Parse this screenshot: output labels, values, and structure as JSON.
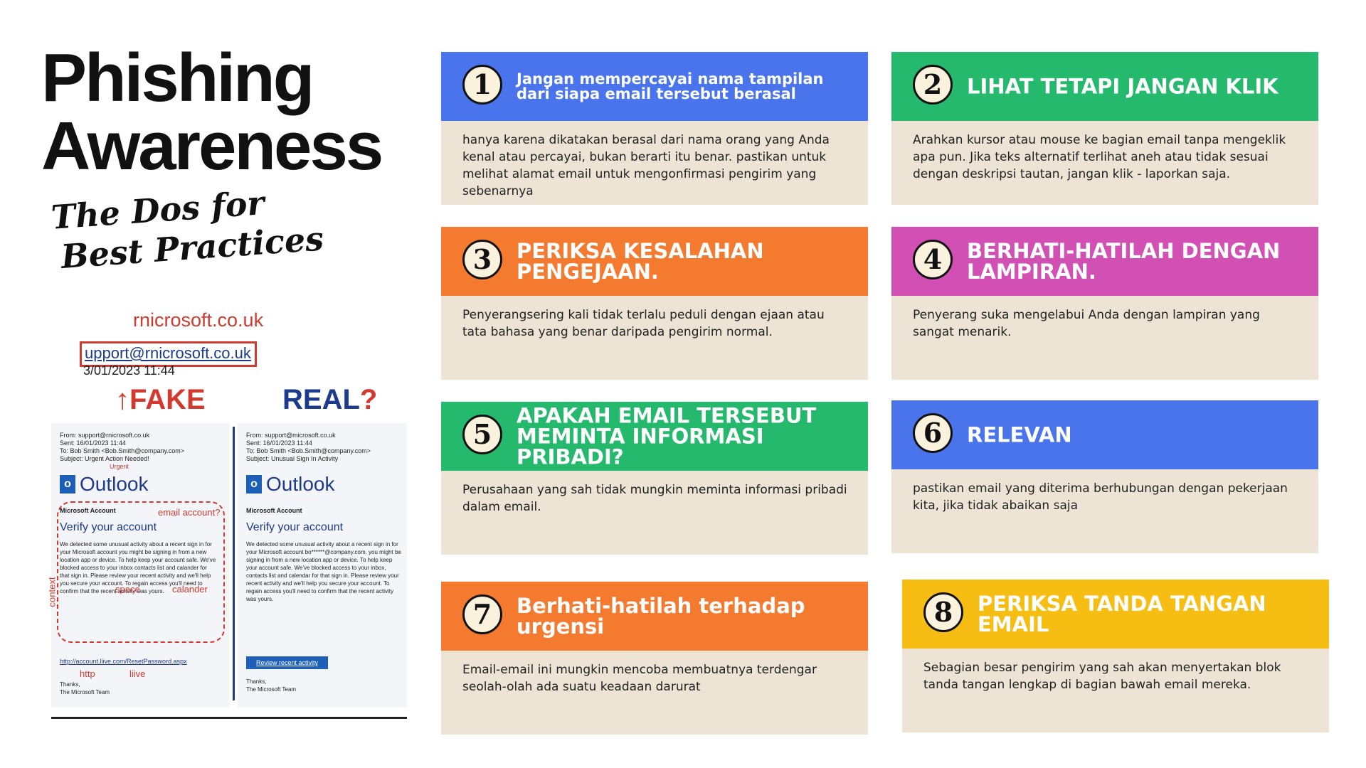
{
  "header": {
    "title_line1": "Phishing",
    "title_line2": "Awareness",
    "subtitle_line1": "The Dos for",
    "subtitle_line2": "Best Practices"
  },
  "illustration": {
    "spoof_domain": "rnicrosoft.co.uk",
    "spoof_address": "upport@rnicrosoft.co.uk",
    "date_fragment": "3/01/2023 11:44",
    "fake_label": "FAKE",
    "real_label": "REAL",
    "real_mark": "?",
    "fake_email": {
      "from": "From: support@rnicrosoft.co.uk",
      "sent": "Sent: 16/01/2023 11:44",
      "to": "To: Bob Smith <Bob.Smith@company.com>",
      "subject": "Subject: Urgent Action Needed!",
      "logo": "Outlook",
      "account": "Microsoft Account",
      "verify": "Verify your account",
      "body": "We detected some unusual activity about a recent sign in for your Microsoft account you might be signing in from a new location app or device. To help keep your account safe. We've blocked access to your inbox contacts list and calander for that sign in. Please review your recent activity and we'll help you secure your account. To regain access you'll need to confirm that the recent activity was yours.",
      "link": "http://account.liive.com/ResetPassword.aspx",
      "signoff": "Thanks,",
      "team": "The Microsoft Team"
    },
    "real_email": {
      "from": "From: support@microsoft.co.uk",
      "sent": "Sent: 16/01/2023 11:44",
      "to": "To: Bob Smith <Bob.Smith@company.com>",
      "subject": "Subject: Unusual Sign In Activity",
      "logo": "Outlook",
      "account": "Microsoft Account",
      "verify": "Verify your account",
      "body": "We detected some unusual activity about a recent sign in for your Microsoft account bo******@company.com. you might be signing in from a new location app or device. To help keep your account safe. We've blocked access to your inbox, contacts list and calendar for that sign in. Please review your recent activity and we'll help you secure your account. To regain access you'll need to confirm that the recent activity was yours.",
      "button": "Review recent activity",
      "signoff": "Thanks,",
      "team": "The Microsoft Team"
    },
    "notes": {
      "urgent": "Urgent",
      "email_account": "email account?",
      "space": "space",
      "calander": "calander",
      "context": "context",
      "http": "http",
      "liive": "liive"
    }
  },
  "cards": [
    {
      "num": "1",
      "title": "Jangan mempercayai nama tampilan dari siapa email tersebut berasal",
      "body": "hanya karena dikatakan berasal dari nama orang yang Anda kenal atau percayai, bukan berarti itu benar. pastikan untuk melihat alamat email untuk mengonfirmasi pengirim yang sebenarnya",
      "color": "#4a74ec"
    },
    {
      "num": "2",
      "title": "LIHAT TETAPI JANGAN KLIK",
      "body": "Arahkan kursor atau mouse ke bagian email tanpa mengeklik apa pun. Jika teks alternatif terlihat aneh atau tidak sesuai dengan deskripsi tautan, jangan klik - laporkan saja.",
      "color": "#24b96c"
    },
    {
      "num": "3",
      "title": "PERIKSA KESALAHAN PENGEJAAN.",
      "body": "Penyerangsering kali tidak terlalu peduli dengan ejaan atau tata bahasa yang benar daripada pengirim normal.",
      "color": "#f47a2f"
    },
    {
      "num": "4",
      "title": "BERHATI-HATILAH DENGAN LAMPIRAN.",
      "body": "Penyerang suka mengelabui Anda dengan lampiran yang sangat menarik.",
      "color": "#d24fb4"
    },
    {
      "num": "5",
      "title": "APAKAH EMAIL TERSEBUT MEMINTA INFORMASI PRIBADI?",
      "body": "Perusahaan yang sah tidak mungkin meminta informasi pribadi dalam email.",
      "color": "#24b96c"
    },
    {
      "num": "6",
      "title": "RELEVAN",
      "body": "pastikan email yang diterima berhubungan dengan pekerjaan kita, jika tidak abaikan saja",
      "color": "#4a74ec"
    },
    {
      "num": "7",
      "title": "Berhati-hatilah terhadap urgensi",
      "body": "Email-email ini mungkin mencoba membuatnya terdengar seolah-olah ada suatu keadaan darurat",
      "color": "#f47a2f"
    },
    {
      "num": "8",
      "title": "PERIKSA TANDA TANGAN EMAIL",
      "body": "Sebagian besar pengirim yang sah akan menyertakan blok tanda tangan lengkap di bagian bawah email mereka.",
      "color": "#f6bd12"
    }
  ]
}
